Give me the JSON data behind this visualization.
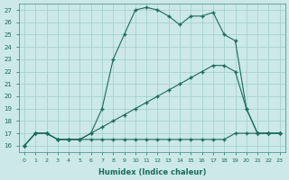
{
  "background_color": "#cce8e8",
  "grid_color": "#9ecece",
  "line_color": "#1a6b5a",
  "xlabel": "Humidex (Indice chaleur)",
  "xlim": [
    -0.5,
    23.5
  ],
  "ylim": [
    15.5,
    27.5
  ],
  "yticks": [
    16,
    17,
    18,
    19,
    20,
    21,
    22,
    23,
    24,
    25,
    26,
    27
  ],
  "xticks": [
    0,
    1,
    2,
    3,
    4,
    5,
    6,
    7,
    8,
    9,
    10,
    11,
    12,
    13,
    14,
    15,
    16,
    17,
    18,
    19,
    20,
    21,
    22,
    23
  ],
  "series_flat_x": [
    0,
    1,
    2,
    3,
    4,
    5,
    6,
    7,
    8,
    9,
    10,
    11,
    12,
    13,
    14,
    15,
    16,
    17,
    18,
    19,
    20,
    21,
    22,
    23
  ],
  "series_flat_y": [
    16,
    17,
    17,
    16.5,
    16.5,
    16.5,
    16.5,
    16.5,
    16.5,
    16.5,
    16.5,
    16.5,
    16.5,
    16.5,
    16.5,
    16.5,
    16.5,
    16.5,
    16.5,
    17,
    17,
    17,
    17,
    17
  ],
  "series_mid_x": [
    0,
    1,
    2,
    3,
    4,
    5,
    6,
    7,
    8,
    9,
    10,
    11,
    12,
    13,
    14,
    15,
    16,
    17,
    18,
    19,
    20,
    21,
    22,
    23
  ],
  "series_mid_y": [
    16,
    17,
    17,
    16.5,
    16.5,
    16.5,
    17,
    17.5,
    18.0,
    18.5,
    19.0,
    19.5,
    20.0,
    20.5,
    21.0,
    21.5,
    22.0,
    22.5,
    22.5,
    22.0,
    19.0,
    17,
    17,
    17
  ],
  "series_top_x": [
    0,
    1,
    2,
    3,
    4,
    5,
    6,
    7,
    8,
    9,
    10,
    11,
    12,
    13,
    14,
    15,
    16,
    17,
    18,
    19,
    20,
    21,
    22,
    23
  ],
  "series_top_y": [
    16,
    17,
    17,
    16.5,
    16.5,
    16.5,
    17,
    19.0,
    23.0,
    25.0,
    27.0,
    27.2,
    27.0,
    26.5,
    25.8,
    26.5,
    26.5,
    26.8,
    25.0,
    24.5,
    19.0,
    17,
    17,
    17
  ]
}
